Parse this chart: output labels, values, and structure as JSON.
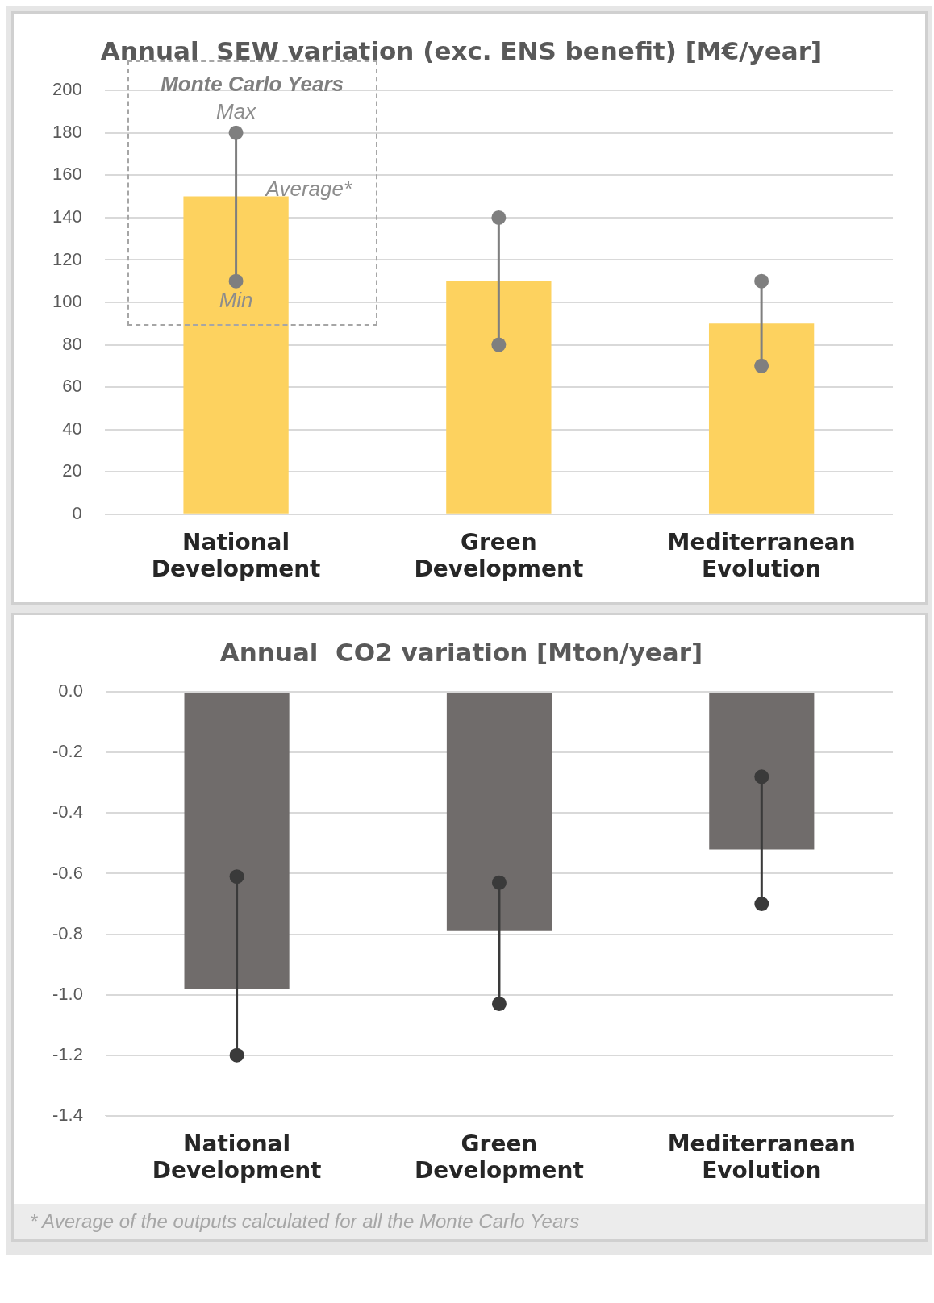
{
  "chart_data": [
    {
      "type": "bar",
      "title": "Annual  SEW variation (exc. ENS benefit) [M€/year]",
      "categories": [
        "National Development",
        "Green Development",
        "Mediterranean Evolution"
      ],
      "series": [
        {
          "color": "#fdd25f",
          "values": [
            150,
            110,
            90
          ]
        },
        {
          "type": "line",
          "color": "#7f7f7f",
          "x": [
            "National Development",
            "National Development"
          ],
          "values": [
            110,
            180
          ]
        },
        {
          "type": "line",
          "color": "#7f7f7f",
          "x": [
            "Green Development",
            "Green Development"
          ],
          "values": [
            80,
            140
          ]
        },
        {
          "type": "line",
          "color": "#7f7f7f",
          "x": [
            "Mediterranean Evolution",
            "Mediterranean Evolution"
          ],
          "values": [
            70,
            110
          ]
        }
      ],
      "marker": "circle",
      "ylim": [
        0,
        200
      ],
      "yticks": [
        0,
        20,
        40,
        60,
        80,
        100,
        120,
        140,
        160,
        180,
        200
      ],
      "grid": "y",
      "legend": false,
      "annotations": [
        "Monte Carlo Years",
        {
          "text": "Max",
          "x": "National Development",
          "y": 180
        },
        {
          "text": "Average*",
          "x": "National Development",
          "y": 150
        },
        {
          "text": "Min",
          "x": "National Development",
          "y": 110
        }
      ]
    },
    {
      "type": "bar",
      "title": "Annual  CO2 variation [Mton/year]",
      "categories": [
        "National Development",
        "Green Development",
        "Mediterranean Evolution"
      ],
      "series": [
        {
          "color": "#706c6b",
          "values": [
            -0.98,
            -0.79,
            -0.52
          ]
        },
        {
          "type": "line",
          "color": "#3a3a3a",
          "x": [
            "National Development",
            "National Development"
          ],
          "values": [
            -1.2,
            -0.61
          ]
        },
        {
          "type": "line",
          "color": "#3a3a3a",
          "x": [
            "Green Development",
            "Green Development"
          ],
          "values": [
            -1.03,
            -0.63
          ]
        },
        {
          "type": "line",
          "color": "#3a3a3a",
          "x": [
            "Mediterranean Evolution",
            "Mediterranean Evolution"
          ],
          "values": [
            -0.7,
            -0.28
          ]
        }
      ],
      "marker": "circle",
      "ylim": [
        -1.4,
        0
      ],
      "yticks": [
        {
          "value": 0,
          "label": "0.0"
        },
        {
          "value": -0.2,
          "label": "-0.2"
        },
        {
          "value": -0.4,
          "label": "-0.4"
        },
        {
          "value": -0.6,
          "label": "-0.6"
        },
        {
          "value": -0.8,
          "label": "-0.8"
        },
        {
          "value": -1.0,
          "label": "-1.0"
        },
        {
          "value": -1.2,
          "label": "-1.2"
        },
        {
          "value": -1.4,
          "label": "-1.4"
        }
      ],
      "grid": "y",
      "legend": false,
      "annotations": [
        "* Average of the outputs calculated for all the Monte Carlo Years"
      ]
    }
  ]
}
